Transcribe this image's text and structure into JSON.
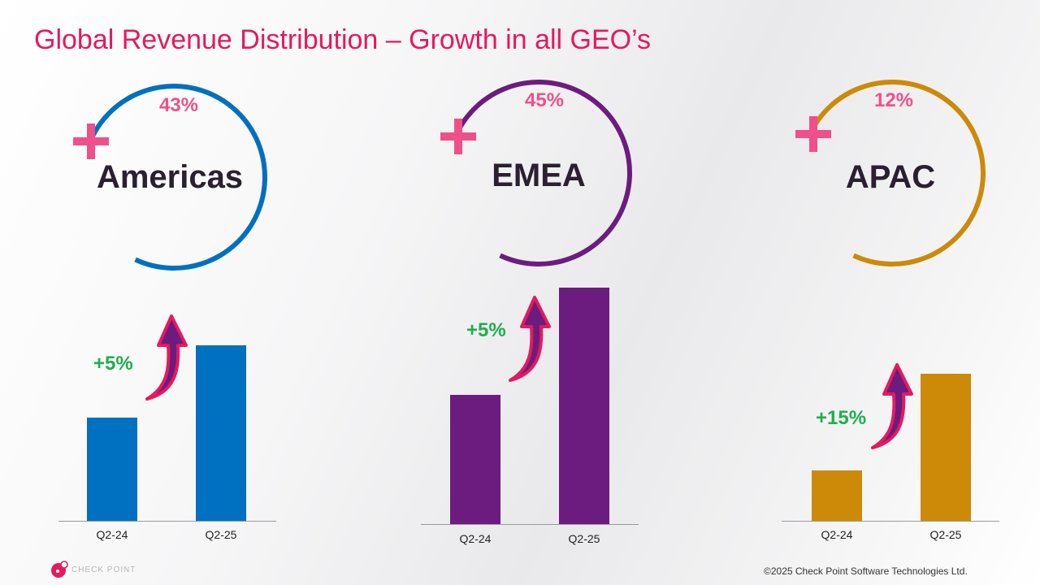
{
  "title": "Global Revenue Distribution – Growth in all GEO’s",
  "regions": [
    {
      "name": "Americas",
      "share": "43%",
      "growth": "+5%",
      "color": "#0070c0"
    },
    {
      "name": "EMEA",
      "share": "45%",
      "growth": "+5%",
      "color": "#6c1c7e"
    },
    {
      "name": "APAC",
      "share": "12%",
      "growth": "+15%",
      "color": "#cc8a08"
    }
  ],
  "chart_data": [
    {
      "type": "bar",
      "categories": [
        "Q2-24",
        "Q2-25"
      ],
      "region": "Americas",
      "growth_label": "+5%"
    },
    {
      "type": "bar",
      "categories": [
        "Q2-24",
        "Q2-25"
      ],
      "region": "EMEA",
      "growth_label": "+5%"
    },
    {
      "type": "bar",
      "categories": [
        "Q2-24",
        "Q2-25"
      ],
      "region": "APAC",
      "growth_label": "+15%"
    }
  ],
  "footer": {
    "logo": "CHECK POINT",
    "copyright": "©2025 Check Point Software Technologies Ltd."
  },
  "colors": {
    "accent": "#e5195e",
    "plus": "#f0508a",
    "growth": "#1fae4d",
    "arrow_outline": "#e5195e",
    "arrow_fill": "#6c1c7e"
  }
}
